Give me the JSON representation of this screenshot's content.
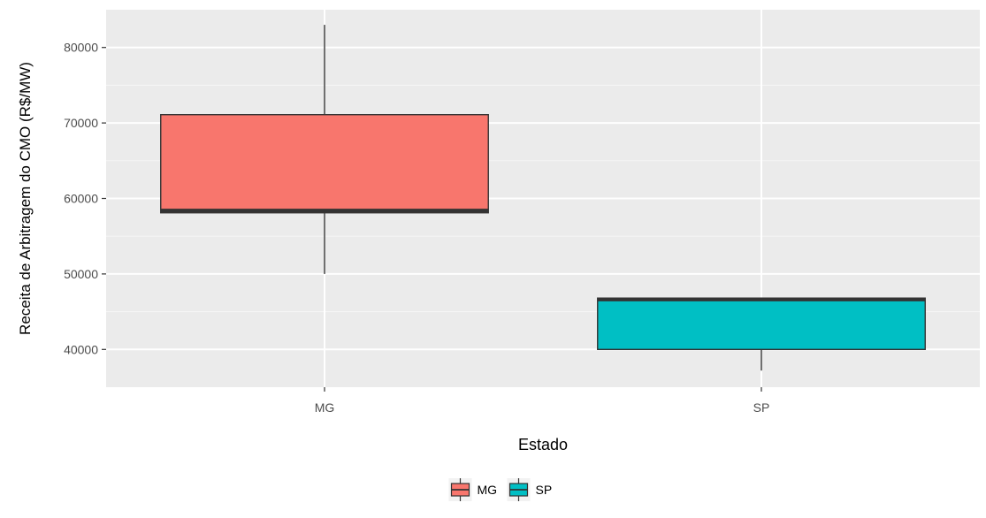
{
  "chart_data": {
    "type": "boxplot",
    "title": "",
    "xlabel": "Estado",
    "ylabel": "Receita de Arbitragem do CMO (R$/MW)",
    "ylim": [
      35000,
      85000
    ],
    "yticks": [
      40000,
      50000,
      60000,
      70000,
      80000
    ],
    "ytick_labels": [
      "40000",
      "50000",
      "60000",
      "70000",
      "80000"
    ],
    "categories": [
      "MG",
      "SP"
    ],
    "boxes": [
      {
        "category": "MG",
        "min": 50000,
        "q1": 58100,
        "median": 58400,
        "q3": 71100,
        "max": 83000,
        "fill": "#F8766D"
      },
      {
        "category": "SP",
        "min": 37200,
        "q1": 40000,
        "median": 46600,
        "q3": 46800,
        "max": 46800,
        "fill": "#00BFC4"
      }
    ],
    "grid": true,
    "legend": {
      "position": "bottom",
      "entries": [
        {
          "label": "MG",
          "color": "#F8766D"
        },
        {
          "label": "SP",
          "color": "#00BFC4"
        }
      ]
    },
    "colors": {
      "panel_background": "#EBEBEB",
      "grid_major": "#FFFFFF",
      "grid_minor": "#F5F5F5",
      "box_outline": "#333333",
      "tick_text": "#4D4D4D",
      "axis_title": "#000000"
    }
  }
}
